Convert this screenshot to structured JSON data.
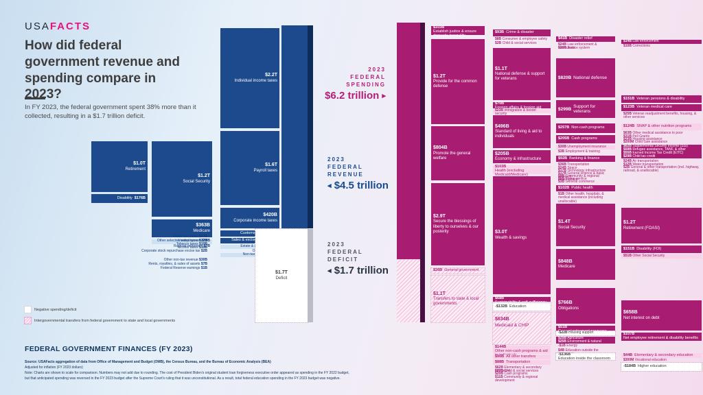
{
  "header": {
    "logo_usa": "USA",
    "logo_facts": "FACTS",
    "title": "How did federal government revenue and spending compare in 2023?",
    "subtitle": "In FY 2023, the federal government spent 38% more than it collected, resulting in a $1.7 trillion deficit."
  },
  "labels": {
    "spending": {
      "lines": [
        "2023",
        "FEDERAL",
        "SPENDING"
      ],
      "amount": "$6.2 trillion"
    },
    "revenue": {
      "lines": [
        "2023",
        "FEDERAL",
        "REVENUE"
      ],
      "amount": "$4.5 trillion"
    },
    "deficit": {
      "lines": [
        "2023",
        "FEDERAL",
        "DEFICIT"
      ],
      "amount": "$1.7 trillion"
    }
  },
  "legend": {
    "items": [
      {
        "label": "Negative spending/deficit"
      },
      {
        "label": "Intergovernmental transfers from federal government to state and local governments"
      }
    ]
  },
  "footer": {
    "heading": "FEDERAL GOVERNMENT FINANCES (FY 2023)",
    "source_lines": [
      "Source: USAFacts aggregation of data from Office of Management and Budget (OMB), the Census Bureau, and the Bureau of Economic Analysis (BEA)",
      "Adjusted for inflation (FY 2023 dollars)",
      "Note: Charts are shown to scale for comparison. Numbers may not add due to rounding. The cost of President Biden's original student loan forgiveness executive order appeared as spending in the FY 2022 budget,",
      "but that anticipated spending was reversed in the FY 2023 budget after the Supreme Court's ruling that it was unconstitutional. As a result, total federal education spending in the FY 2023 budget was negative."
    ]
  },
  "chart_data": {
    "type": "sankey",
    "title": "Federal government finances (FY 2023)",
    "totals": {
      "revenue": "$4.5 trillion",
      "spending": "$6.2 trillion",
      "deficit": "$1.7 trillion"
    },
    "colors": {
      "revenue_blue": "#1c4a8c",
      "spending_magenta": "#a81d72",
      "brand_pink": "#ef0e7e"
    },
    "nodes": [
      {
        "id": "r_indiv",
        "v": "$2.2T",
        "l": "Individual income taxes"
      },
      {
        "id": "r_payroll",
        "v": "$1.6T",
        "l": "Payroll taxes"
      },
      {
        "id": "r_corp",
        "v": "$420B",
        "l": "Corporate income taxes"
      },
      {
        "id": "r_customs",
        "v": "$80B",
        "l": "Customs duties"
      },
      {
        "id": "r_sales",
        "v": "$76B",
        "l": "Sales & excise taxes"
      },
      {
        "id": "r_estate",
        "v": "$34B",
        "l": "Estate & gift taxes"
      },
      {
        "id": "r_othertax",
        "v": "$9B",
        "l": "Other taxes"
      },
      {
        "id": "r_nontax",
        "v": "$38B",
        "l": "Non-tax revenue"
      },
      {
        "id": "r_retire",
        "v": "$1.0T",
        "l": "Retirement"
      },
      {
        "id": "r_disab",
        "v": "$176B",
        "l": "Disability"
      },
      {
        "id": "r_ss",
        "v": "$1.2T",
        "l": "Social Security"
      },
      {
        "id": "r_medicare",
        "v": "$363B",
        "l": "Medicare"
      },
      {
        "id": "r_unemp",
        "v": "$50B",
        "l": "Unemployment"
      },
      {
        "id": "r_rail",
        "v": "$7B",
        "l": "Railroad retirement"
      },
      {
        "id": "r_motor",
        "v": "$27B",
        "l": "Motor fuel taxes"
      },
      {
        "id": "r_osales",
        "v": "$27B",
        "l": "Other selective sales taxes"
      },
      {
        "id": "r_tobacco",
        "v": "$10B",
        "l": "Tobacco taxes"
      },
      {
        "id": "r_alcohol",
        "v": "$10B",
        "l": "Alcohol taxes"
      },
      {
        "id": "r_stock",
        "v": "$2B",
        "l": "Corporate stock repurchase excise tax"
      },
      {
        "id": "r_onontax",
        "v": "$30B",
        "l": "Other non-tax revenue"
      },
      {
        "id": "r_rents",
        "v": "$7B",
        "l": "Rents, royalties, & sales of assets"
      },
      {
        "id": "r_fedres",
        "v": "$1B",
        "l": "Federal Reserve earnings"
      },
      {
        "id": "col_deficit",
        "v": "$1.7T",
        "l": "Deficit"
      },
      {
        "id": "s1_justice",
        "v": "$103B",
        "l": "Establish justice & ensure domestic tranquility"
      },
      {
        "id": "s1_defense",
        "v": "$1.2T",
        "l": "Provide for the common defense"
      },
      {
        "id": "s1_welfare",
        "v": "$804B",
        "l": "Promote the general welfare"
      },
      {
        "id": "s1_secure",
        "v": "$2.9T",
        "l": "Secure the blessings of liberty to ourselves & our posterity"
      },
      {
        "id": "s1_gengov",
        "v": "$26B",
        "l": "General government"
      },
      {
        "id": "s1_transfers",
        "v": "$1.1T",
        "l": "Transfers to state & local governments"
      },
      {
        "id": "s2_crime",
        "v": "$93B",
        "l": "Crime & disaster"
      },
      {
        "id": "s2_consumer",
        "v": "$8B",
        "l": "Consumer & employee safety"
      },
      {
        "id": "s2_childsoc",
        "v": "$2B",
        "l": "Child & social services"
      },
      {
        "id": "s2_natdef",
        "v": "$1.1T",
        "l": "National defense & support for veterans"
      },
      {
        "id": "s2_foreign",
        "v": "$70B",
        "l": "Foreign affairs & foreign aid"
      },
      {
        "id": "s2_immig",
        "v": "$23B",
        "l": "Immigration & border security"
      },
      {
        "id": "s2_living",
        "v": "$496B",
        "l": "Standard of living & aid to individuals"
      },
      {
        "id": "s2_econ",
        "v": "$205B",
        "l": "Economy & infrastructure"
      },
      {
        "id": "s2_health",
        "v": "$103B",
        "l": "Health (excluding Medicaid/Medicare)"
      },
      {
        "id": "s2_wealth",
        "v": "$3.0T",
        "l": "Wealth & savings"
      },
      {
        "id": "s2_sustain",
        "v": "$68B",
        "l": "Sustainability & self-sufficiency"
      },
      {
        "id": "s2_edu",
        "v": "-$132B",
        "l": "Education"
      },
      {
        "id": "s2_medicaid",
        "v": "$634B",
        "l": "Medicaid & CHIP"
      },
      {
        "id": "s2_noncash",
        "v": "$144B",
        "l": "Other non-cash programs & aid to individuals"
      },
      {
        "id": "s2_alltrans",
        "v": "$90B",
        "l": "All other transfers"
      },
      {
        "id": "s2_transport",
        "v": "$88B",
        "l": "Transportation"
      },
      {
        "id": "s2_elemsec",
        "v": "$62B",
        "l": "Elementary & secondary education"
      },
      {
        "id": "s2_childsoc2",
        "v": "$27B",
        "l": "Child & social services"
      },
      {
        "id": "s2_cash",
        "v": "$20B",
        "l": "Cash programs"
      },
      {
        "id": "s2_commdev",
        "v": "$11B",
        "l": "Community & regional development"
      },
      {
        "id": "s3_disaster",
        "v": "$41B",
        "l": "Disaster relief"
      },
      {
        "id": "s3_lawcorr",
        "v": "$24B",
        "l": "Law enforcement & corrections"
      },
      {
        "id": "s3_justsys",
        "v": "$28B",
        "l": "Justice system"
      },
      {
        "id": "s3_natdef",
        "v": "$820B",
        "l": "National defense"
      },
      {
        "id": "s3_vets",
        "v": "$299B",
        "l": "Support for veterans"
      },
      {
        "id": "s3_noncash",
        "v": "$257B",
        "l": "Non-cash programs"
      },
      {
        "id": "s3_cashprog",
        "v": "$205B",
        "l": "Cash programs"
      },
      {
        "id": "s3_unempins",
        "v": "$30B",
        "l": "Unemployment insurance"
      },
      {
        "id": "s3_emptrain",
        "v": "$3B",
        "l": "Employment & training"
      },
      {
        "id": "s3_banking",
        "v": "$92B",
        "l": "Banking & finance"
      },
      {
        "id": "s3_trans",
        "v": "$36B",
        "l": "Transportation"
      },
      {
        "id": "s3_space",
        "v": "$24B",
        "l": "Space"
      },
      {
        "id": "s3_tech",
        "v": "$17B",
        "l": "Technology infrastructure"
      },
      {
        "id": "s3_science",
        "v": "$17B",
        "l": "General science & basic research"
      },
      {
        "id": "s3_comm",
        "v": "$9B",
        "l": "Community & regional development"
      },
      {
        "id": "s3_postal",
        "v": "$6B",
        "l": "Postal service"
      },
      {
        "id": "s3_gencom",
        "v": "$3B",
        "l": "General commerce"
      },
      {
        "id": "s3_pubhealth",
        "v": "$102B",
        "l": "Public health"
      },
      {
        "id": "s3_othhealth",
        "v": "$1B",
        "l": "Other health, hospitals, & medical assistance (including unallocable)"
      },
      {
        "id": "s3_socsec",
        "v": "$1.4T",
        "l": "Social Security"
      },
      {
        "id": "s3_medicare",
        "v": "$848B",
        "l": "Medicare"
      },
      {
        "id": "s3_oblig",
        "v": "$766B",
        "l": "Obligations"
      },
      {
        "id": "s3_genret",
        "v": "$51B",
        "l": "General retirement programs"
      },
      {
        "id": "s3_houssup",
        "v": "-$22B",
        "l": "Housing support"
      },
      {
        "id": "s3_agri",
        "v": "$25B",
        "l": "Agriculture"
      },
      {
        "id": "s3_envir",
        "v": "$25B",
        "l": "Environment & natural resources"
      },
      {
        "id": "s3_energy",
        "v": "-$1B",
        "l": "Energy"
      },
      {
        "id": "s3_eduout",
        "v": "$4B",
        "l": "Education outside the classroom"
      },
      {
        "id": "s3_eduin",
        "v": "-$136B",
        "l": "Education inside the classroom"
      },
      {
        "id": "s4_lawenf",
        "v": "$14B",
        "l": "Law enforcement"
      },
      {
        "id": "s4_corr",
        "v": "$10B",
        "l": "Corrections"
      },
      {
        "id": "s4_vetpen",
        "v": "$151B",
        "l": "Veteran pensions & disability"
      },
      {
        "id": "s4_vetmed",
        "v": "$123B",
        "l": "Veteran medical care"
      },
      {
        "id": "s4_vetread",
        "v": "$25B",
        "l": "Veteran readjustment benefits, housing, & other services"
      },
      {
        "id": "s4_snap",
        "v": "$124B",
        "l": "SNAP & other nutrition programs"
      },
      {
        "id": "s4_othmed",
        "v": "$63B",
        "l": "Other medical assistance to poor"
      },
      {
        "id": "s4_pell",
        "v": "$31B",
        "l": "Pell Grants"
      },
      {
        "id": "s4_hous",
        "v": "$23B",
        "l": "Housing assistance"
      },
      {
        "id": "s4_childcare",
        "v": "$200M",
        "l": "Child care assistance"
      },
      {
        "id": "s4_ssi",
        "v": "$62B",
        "l": "Supplemental Security Income (SSI)"
      },
      {
        "id": "s4_refugee",
        "v": "$59B",
        "l": "Refugee assistance, TANF, & other"
      },
      {
        "id": "s4_eitc",
        "v": "$55B",
        "l": "Earned Income Tax Credit (EITC)"
      },
      {
        "id": "s4_ctc",
        "v": "$29B",
        "l": "Child tax credit"
      },
      {
        "id": "s4_air",
        "v": "$24B",
        "l": "Air transportation"
      },
      {
        "id": "s4_water",
        "v": "$12B",
        "l": "Water transportation"
      },
      {
        "id": "s4_gentr",
        "v": "$2B",
        "l": "General & other transportation (incl. highway, railroad, & unallocable)"
      },
      {
        "id": "s4_foasi",
        "v": "$1.2T",
        "l": "Retirement (FOASI)"
      },
      {
        "id": "s4_fdi",
        "v": "$151B",
        "l": "Disability (FDI)"
      },
      {
        "id": "s4_othss",
        "v": "$51B",
        "l": "Other Social Security"
      },
      {
        "id": "s4_netint",
        "v": "$658B",
        "l": "Net interest on debt"
      },
      {
        "id": "s4_netemp",
        "v": "$107B",
        "l": "Net employee retirement & disability benefits"
      },
      {
        "id": "s4_elemsec",
        "v": "$44B",
        "l": "Elementary & secondary education"
      },
      {
        "id": "s4_voc",
        "v": "$300M",
        "l": "Vocational education"
      },
      {
        "id": "s4_higher",
        "v": "-$184B",
        "l": "Higher education"
      }
    ]
  }
}
